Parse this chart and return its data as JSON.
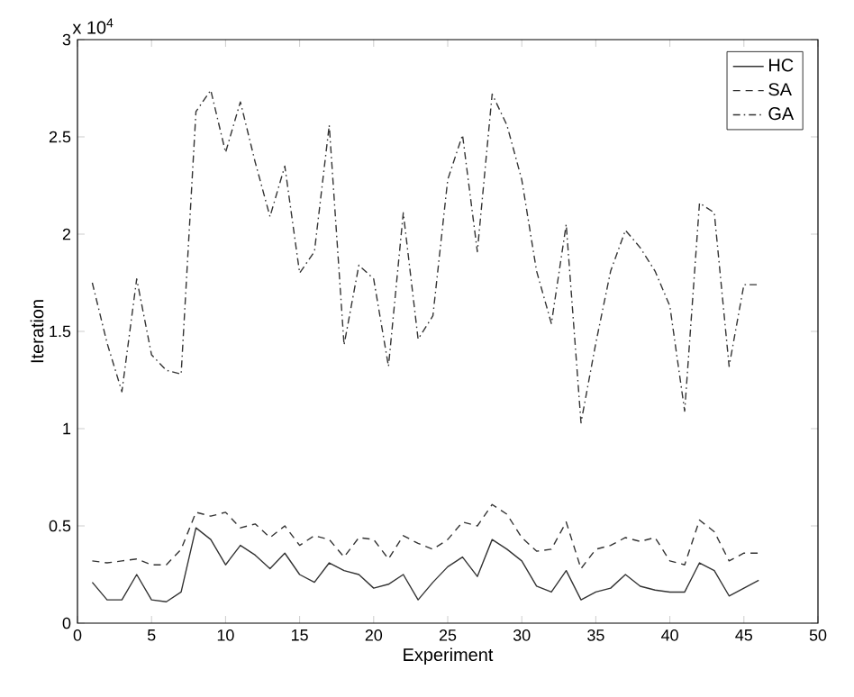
{
  "chart_data": {
    "type": "line",
    "xlabel": "Experiment",
    "ylabel": "Iteration",
    "annotations": [
      "x 10$^{4}$"
    ],
    "x": [
      1,
      2,
      3,
      4,
      5,
      6,
      7,
      8,
      9,
      10,
      11,
      12,
      13,
      14,
      15,
      16,
      17,
      18,
      19,
      20,
      21,
      22,
      23,
      24,
      25,
      26,
      27,
      28,
      29,
      30,
      31,
      32,
      33,
      34,
      35,
      36,
      37,
      38,
      39,
      40,
      41,
      42,
      43,
      44,
      45,
      46
    ],
    "series": [
      {
        "name": "HC",
        "color": "#333333",
        "line_style": "solid",
        "values": [
          0.21,
          0.12,
          0.12,
          0.25,
          0.12,
          0.11,
          0.16,
          0.49,
          0.43,
          0.3,
          0.4,
          0.35,
          0.28,
          0.36,
          0.25,
          0.21,
          0.31,
          0.27,
          0.25,
          0.18,
          0.2,
          0.25,
          0.12,
          0.21,
          0.29,
          0.34,
          0.24,
          0.43,
          0.38,
          0.32,
          0.19,
          0.16,
          0.27,
          0.12,
          0.16,
          0.18,
          0.25,
          0.19,
          0.17,
          0.16,
          0.16,
          0.31,
          0.27,
          0.14,
          0.18,
          0.22
        ]
      },
      {
        "name": "SA",
        "color": "#333333",
        "line_style": "dashed",
        "values": [
          0.32,
          0.31,
          0.32,
          0.33,
          0.3,
          0.3,
          0.38,
          0.57,
          0.55,
          0.57,
          0.49,
          0.51,
          0.44,
          0.5,
          0.4,
          0.45,
          0.43,
          0.34,
          0.44,
          0.43,
          0.33,
          0.45,
          0.41,
          0.38,
          0.43,
          0.52,
          0.5,
          0.61,
          0.56,
          0.44,
          0.37,
          0.38,
          0.52,
          0.28,
          0.38,
          0.4,
          0.44,
          0.42,
          0.44,
          0.32,
          0.3,
          0.53,
          0.47,
          0.32,
          0.36,
          0.36
        ]
      },
      {
        "name": "GA",
        "color": "#333333",
        "line_style": "dashdotted",
        "values": [
          1.75,
          1.44,
          1.19,
          1.77,
          1.38,
          1.3,
          1.28,
          2.63,
          2.74,
          2.42,
          2.68,
          2.37,
          2.09,
          2.35,
          1.8,
          1.91,
          2.56,
          1.43,
          1.84,
          1.77,
          1.32,
          2.11,
          1.46,
          1.58,
          2.28,
          2.51,
          1.91,
          2.72,
          2.56,
          2.28,
          1.81,
          1.54,
          2.05,
          1.03,
          1.44,
          1.81,
          2.02,
          1.93,
          1.81,
          1.63,
          1.09,
          2.16,
          2.11,
          1.32,
          1.74,
          1.74
        ]
      }
    ],
    "xlim": [
      0,
      50
    ],
    "ylim": [
      0,
      3
    ],
    "xticks": [
      0,
      5,
      10,
      15,
      20,
      25,
      30,
      35,
      40,
      45,
      50
    ],
    "yticks": [
      0,
      0.5,
      1,
      1.5,
      2,
      2.5,
      3
    ],
    "legend": "top right",
    "grid": false,
    "marker": "none"
  }
}
